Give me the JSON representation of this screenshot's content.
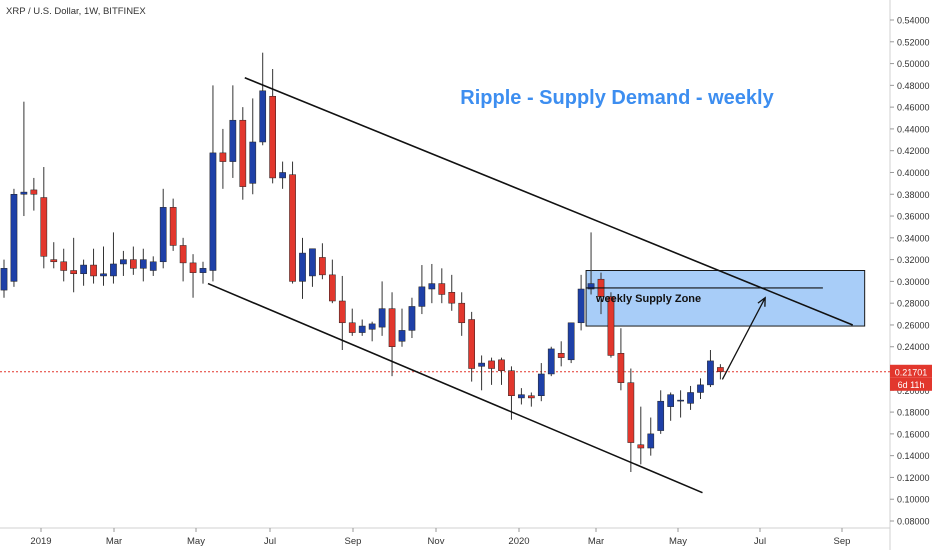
{
  "header": {
    "symbol_line": "XRP / U.S. Dollar, 1W, BITFINEX"
  },
  "colors": {
    "up": "#1e40a8",
    "down": "#e2372d",
    "title": "#3d8ef0",
    "zone_fill": "#9ec8f7",
    "zone_stroke": "#1a1a1a",
    "price_line": "#e2372d",
    "axis_text": "#333333",
    "grid": "#e8e8e8"
  },
  "chart_data": {
    "type": "candlestick",
    "title": "Ripple - Supply Demand - weekly",
    "y_ticks": [
      "0.54000",
      "0.52000",
      "0.50000",
      "0.48000",
      "0.46000",
      "0.44000",
      "0.42000",
      "0.40000",
      "0.38000",
      "0.36000",
      "0.34000",
      "0.32000",
      "0.30000",
      "0.28000",
      "0.26000",
      "0.24000",
      "0.22000",
      "0.20000",
      "0.18000",
      "0.16000",
      "0.14000",
      "0.12000",
      "0.10000",
      "0.08000"
    ],
    "x_labels": [
      "2019",
      "Mar",
      "May",
      "Jul",
      "Sep",
      "Nov",
      "2020",
      "Mar",
      "May",
      "Jul",
      "Sep"
    ],
    "ylim": [
      0.075,
      0.555
    ],
    "last_price": {
      "label": "0.21701",
      "value": 0.21701,
      "countdown": "6d 11h"
    },
    "candles": [
      {
        "o": 0.292,
        "h": 0.32,
        "l": 0.285,
        "c": 0.312
      },
      {
        "o": 0.3,
        "h": 0.385,
        "l": 0.295,
        "c": 0.38
      },
      {
        "o": 0.38,
        "h": 0.465,
        "l": 0.36,
        "c": 0.382
      },
      {
        "o": 0.384,
        "h": 0.395,
        "l": 0.365,
        "c": 0.38
      },
      {
        "o": 0.377,
        "h": 0.405,
        "l": 0.312,
        "c": 0.323
      },
      {
        "o": 0.32,
        "h": 0.336,
        "l": 0.312,
        "c": 0.318
      },
      {
        "o": 0.318,
        "h": 0.33,
        "l": 0.3,
        "c": 0.31
      },
      {
        "o": 0.31,
        "h": 0.34,
        "l": 0.29,
        "c": 0.307
      },
      {
        "o": 0.307,
        "h": 0.32,
        "l": 0.296,
        "c": 0.315
      },
      {
        "o": 0.315,
        "h": 0.33,
        "l": 0.298,
        "c": 0.305
      },
      {
        "o": 0.305,
        "h": 0.332,
        "l": 0.296,
        "c": 0.307
      },
      {
        "o": 0.305,
        "h": 0.345,
        "l": 0.298,
        "c": 0.316
      },
      {
        "o": 0.316,
        "h": 0.328,
        "l": 0.305,
        "c": 0.32
      },
      {
        "o": 0.32,
        "h": 0.332,
        "l": 0.306,
        "c": 0.312
      },
      {
        "o": 0.312,
        "h": 0.33,
        "l": 0.3,
        "c": 0.32
      },
      {
        "o": 0.31,
        "h": 0.323,
        "l": 0.305,
        "c": 0.318
      },
      {
        "o": 0.318,
        "h": 0.385,
        "l": 0.312,
        "c": 0.368
      },
      {
        "o": 0.368,
        "h": 0.376,
        "l": 0.328,
        "c": 0.333
      },
      {
        "o": 0.333,
        "h": 0.34,
        "l": 0.3,
        "c": 0.317
      },
      {
        "o": 0.317,
        "h": 0.325,
        "l": 0.285,
        "c": 0.308
      },
      {
        "o": 0.308,
        "h": 0.318,
        "l": 0.298,
        "c": 0.312
      },
      {
        "o": 0.31,
        "h": 0.48,
        "l": 0.3,
        "c": 0.418
      },
      {
        "o": 0.418,
        "h": 0.44,
        "l": 0.385,
        "c": 0.41
      },
      {
        "o": 0.41,
        "h": 0.48,
        "l": 0.395,
        "c": 0.448
      },
      {
        "o": 0.448,
        "h": 0.46,
        "l": 0.375,
        "c": 0.387
      },
      {
        "o": 0.39,
        "h": 0.468,
        "l": 0.38,
        "c": 0.428
      },
      {
        "o": 0.428,
        "h": 0.51,
        "l": 0.425,
        "c": 0.475
      },
      {
        "o": 0.47,
        "h": 0.495,
        "l": 0.39,
        "c": 0.395
      },
      {
        "o": 0.395,
        "h": 0.41,
        "l": 0.385,
        "c": 0.4
      },
      {
        "o": 0.398,
        "h": 0.41,
        "l": 0.298,
        "c": 0.3
      },
      {
        "o": 0.3,
        "h": 0.34,
        "l": 0.284,
        "c": 0.326
      },
      {
        "o": 0.305,
        "h": 0.33,
        "l": 0.295,
        "c": 0.33
      },
      {
        "o": 0.322,
        "h": 0.335,
        "l": 0.302,
        "c": 0.306
      },
      {
        "o": 0.306,
        "h": 0.32,
        "l": 0.28,
        "c": 0.282
      },
      {
        "o": 0.282,
        "h": 0.305,
        "l": 0.237,
        "c": 0.262
      },
      {
        "o": 0.262,
        "h": 0.275,
        "l": 0.25,
        "c": 0.253
      },
      {
        "o": 0.253,
        "h": 0.265,
        "l": 0.25,
        "c": 0.259
      },
      {
        "o": 0.256,
        "h": 0.263,
        "l": 0.245,
        "c": 0.261
      },
      {
        "o": 0.258,
        "h": 0.3,
        "l": 0.25,
        "c": 0.275
      },
      {
        "o": 0.275,
        "h": 0.29,
        "l": 0.213,
        "c": 0.24
      },
      {
        "o": 0.245,
        "h": 0.275,
        "l": 0.24,
        "c": 0.255
      },
      {
        "o": 0.255,
        "h": 0.285,
        "l": 0.248,
        "c": 0.277
      },
      {
        "o": 0.277,
        "h": 0.315,
        "l": 0.27,
        "c": 0.295
      },
      {
        "o": 0.293,
        "h": 0.316,
        "l": 0.28,
        "c": 0.298
      },
      {
        "o": 0.298,
        "h": 0.312,
        "l": 0.28,
        "c": 0.288
      },
      {
        "o": 0.29,
        "h": 0.306,
        "l": 0.273,
        "c": 0.28
      },
      {
        "o": 0.28,
        "h": 0.29,
        "l": 0.25,
        "c": 0.262
      },
      {
        "o": 0.265,
        "h": 0.272,
        "l": 0.208,
        "c": 0.22
      },
      {
        "o": 0.222,
        "h": 0.232,
        "l": 0.2,
        "c": 0.225
      },
      {
        "o": 0.227,
        "h": 0.23,
        "l": 0.205,
        "c": 0.22
      },
      {
        "o": 0.228,
        "h": 0.23,
        "l": 0.205,
        "c": 0.218
      },
      {
        "o": 0.218,
        "h": 0.222,
        "l": 0.173,
        "c": 0.195
      },
      {
        "o": 0.193,
        "h": 0.202,
        "l": 0.187,
        "c": 0.196
      },
      {
        "o": 0.195,
        "h": 0.198,
        "l": 0.185,
        "c": 0.193
      },
      {
        "o": 0.195,
        "h": 0.225,
        "l": 0.19,
        "c": 0.215
      },
      {
        "o": 0.215,
        "h": 0.24,
        "l": 0.213,
        "c": 0.238
      },
      {
        "o": 0.234,
        "h": 0.245,
        "l": 0.222,
        "c": 0.23
      },
      {
        "o": 0.228,
        "h": 0.262,
        "l": 0.225,
        "c": 0.262
      },
      {
        "o": 0.262,
        "h": 0.306,
        "l": 0.255,
        "c": 0.293
      },
      {
        "o": 0.293,
        "h": 0.345,
        "l": 0.288,
        "c": 0.298
      },
      {
        "o": 0.302,
        "h": 0.308,
        "l": 0.27,
        "c": 0.286
      },
      {
        "o": 0.286,
        "h": 0.29,
        "l": 0.23,
        "c": 0.232
      },
      {
        "o": 0.234,
        "h": 0.257,
        "l": 0.2,
        "c": 0.207
      },
      {
        "o": 0.207,
        "h": 0.22,
        "l": 0.125,
        "c": 0.152
      },
      {
        "o": 0.15,
        "h": 0.185,
        "l": 0.132,
        "c": 0.147
      },
      {
        "o": 0.147,
        "h": 0.175,
        "l": 0.14,
        "c": 0.16
      },
      {
        "o": 0.163,
        "h": 0.2,
        "l": 0.16,
        "c": 0.19
      },
      {
        "o": 0.185,
        "h": 0.198,
        "l": 0.172,
        "c": 0.196
      },
      {
        "o": 0.191,
        "h": 0.2,
        "l": 0.175,
        "c": 0.191
      },
      {
        "o": 0.188,
        "h": 0.204,
        "l": 0.182,
        "c": 0.198
      },
      {
        "o": 0.198,
        "h": 0.211,
        "l": 0.192,
        "c": 0.205
      },
      {
        "o": 0.205,
        "h": 0.237,
        "l": 0.203,
        "c": 0.227
      },
      {
        "o": 0.221,
        "h": 0.224,
        "l": 0.21,
        "c": 0.217
      }
    ],
    "annotations": {
      "zone_label": "weekly Supply Zone",
      "supply_zone": {
        "x0": 58.5,
        "x1": 86.5,
        "top": 0.31,
        "bottom": 0.259
      },
      "zone_line": {
        "x0": 58.5,
        "x1": 82.3,
        "y": 0.294
      },
      "upper_trendline": {
        "x0": 24.2,
        "y0": 0.487,
        "x1": 85.3,
        "y1": 0.26
      },
      "lower_trendline": {
        "x0": 20.5,
        "y0": 0.298,
        "x1": 70.2,
        "y1": 0.106
      },
      "arrow": {
        "x0": 72.2,
        "y0": 0.21,
        "x1": 76.5,
        "y1": 0.285
      }
    }
  }
}
